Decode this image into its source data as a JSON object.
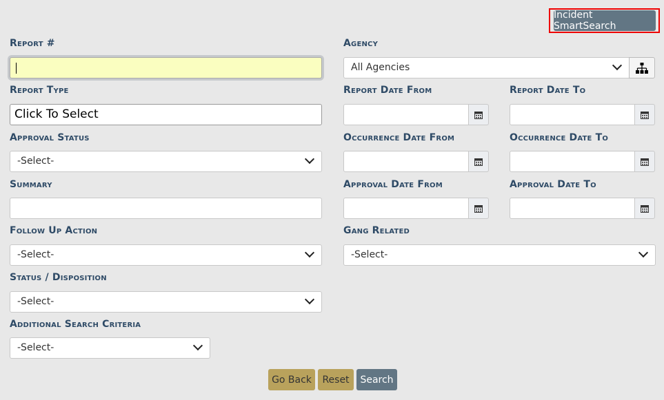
{
  "header": {
    "smart_search": "Incident SmartSearch"
  },
  "fields": {
    "report_no": {
      "label": "Report #",
      "value": ""
    },
    "agency": {
      "label": "Agency",
      "value": "All Agencies"
    },
    "report_type": {
      "label": "Report Type",
      "value": "Click To Select"
    },
    "report_date_from": {
      "label": "Report Date From",
      "value": ""
    },
    "report_date_to": {
      "label": "Report Date To",
      "value": ""
    },
    "approval_status": {
      "label": "Approval Status",
      "value": "-Select-"
    },
    "occurrence_date_from": {
      "label": "Occurrence Date From",
      "value": ""
    },
    "occurrence_date_to": {
      "label": "Occurrence Date To",
      "value": ""
    },
    "summary": {
      "label": "Summary",
      "value": ""
    },
    "approval_date_from": {
      "label": "Approval Date From",
      "value": ""
    },
    "approval_date_to": {
      "label": "Approval Date To",
      "value": ""
    },
    "follow_up": {
      "label": "Follow Up Action",
      "value": "-Select-"
    },
    "gang_related": {
      "label": "Gang Related",
      "value": "-Select-"
    },
    "status_disposition": {
      "label": "Status / Disposition",
      "value": "-Select-"
    },
    "additional": {
      "label": "Additional Search Criteria",
      "value": "-Select-"
    }
  },
  "actions": {
    "go_back": "Go Back",
    "reset": "Reset",
    "search": "Search"
  },
  "colors": {
    "label": "#2e4a66",
    "gold_button": "#b9a25c",
    "slate_button": "#627684",
    "focus_input": "#fafec0",
    "highlight": "#ff0000"
  }
}
